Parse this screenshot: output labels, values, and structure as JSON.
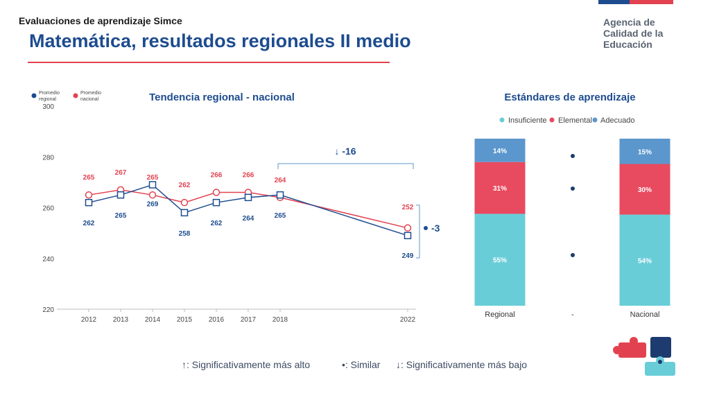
{
  "header": {
    "eyebrow": "Evaluaciones de aprendizaje Simce",
    "title": "Matemática, resultados regionales II medio",
    "agency_line1": "Agencia de",
    "agency_line2": "Calidad de la",
    "agency_line3": "Educación"
  },
  "colors": {
    "regional": "#1d4c8f",
    "nacional": "#e2424f",
    "insuficiente": "#69cdd8",
    "elemental": "#e84a5f",
    "adecuado": "#5b97cd"
  },
  "trend_legend": {
    "regional_line1": "Promedio",
    "regional_line2": "regional",
    "nacional_line1": "Promedio",
    "nacional_line2": "nacional"
  },
  "diff_labels": {
    "since_2018": "↓ -16",
    "vs_national": "-3"
  },
  "chart_data": [
    {
      "type": "line",
      "title": "Tendencia regional - nacional",
      "categories": [
        "2012",
        "2013",
        "2014",
        "2015",
        "2016",
        "2017",
        "2018",
        "2022"
      ],
      "ylim": [
        220,
        300
      ],
      "yticks": [
        220,
        240,
        260,
        280,
        300
      ],
      "series": [
        {
          "name": "Promedio regional",
          "values": [
            262,
            265,
            269,
            258,
            262,
            264,
            265,
            249
          ]
        },
        {
          "name": "Promedio nacional",
          "values": [
            265,
            267,
            265,
            262,
            266,
            266,
            264,
            252
          ]
        }
      ],
      "grid": false,
      "legend": "top-left"
    },
    {
      "type": "bar",
      "stacked": true,
      "title": "Estándares de aprendizaje",
      "categories": [
        "Regional",
        "-",
        "Nacional"
      ],
      "series": [
        {
          "name": "Insuficiente",
          "values": [
            55,
            null,
            54
          ]
        },
        {
          "name": "Elemental",
          "values": [
            31,
            null,
            30
          ]
        },
        {
          "name": "Adecuado",
          "values": [
            14,
            null,
            15
          ]
        }
      ],
      "legend": "top"
    }
  ],
  "footer": {
    "higher": "↑: Significativamente más alto",
    "similar": "•: Similar",
    "lower": "↓: Significativamente más bajo"
  }
}
